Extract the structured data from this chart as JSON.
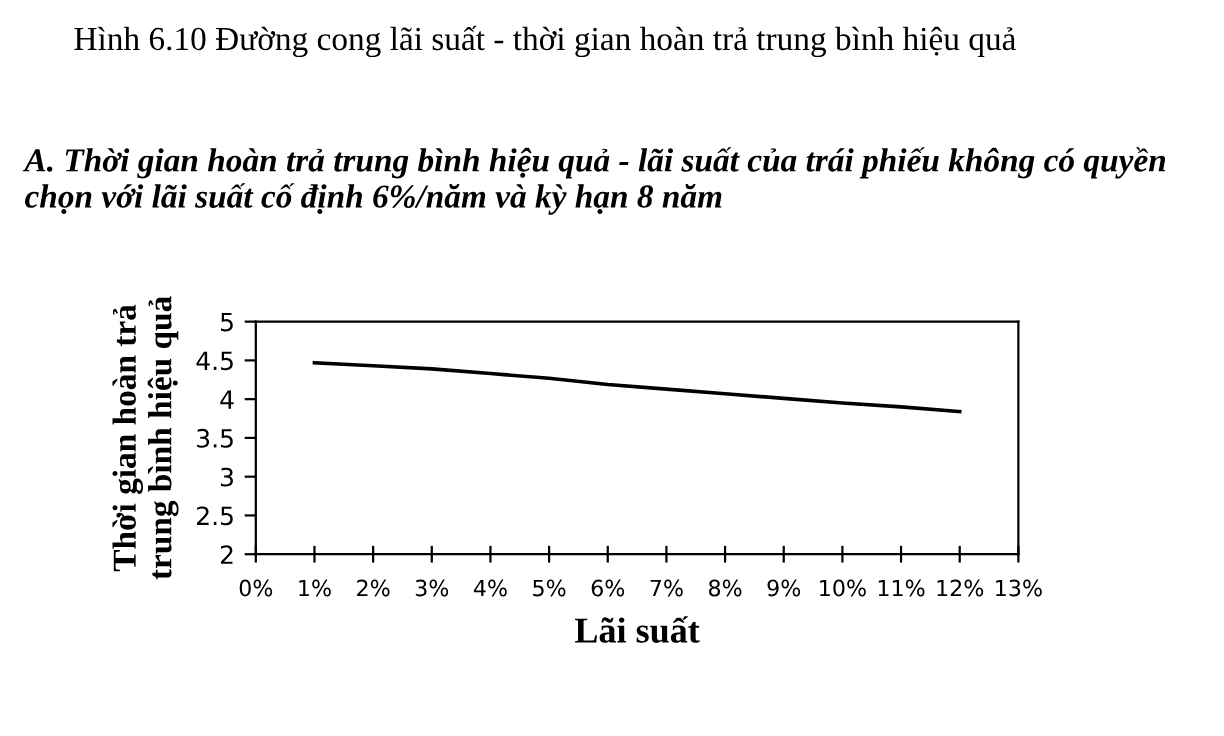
{
  "chart_data": {
    "type": "line",
    "title": "Hình 6.10 Đường cong lãi suất - thời gian hoàn trả trung bình hiệu quả",
    "subtitle": "A. Thời gian hoàn trả trung bình hiệu quả - lãi suất của trái phiếu không có quyền chọn với lãi suất cố định 6%/năm và kỳ hạn 8 năm",
    "xlabel": "Lãi suất",
    "ylabel": "Thời gian hoàn trả\ntrung bình hiệu quả",
    "x": [
      1,
      2,
      3,
      4,
      5,
      6,
      7,
      8,
      9,
      10,
      11,
      12
    ],
    "series": [
      {
        "color": "#000000",
        "values": [
          4.47,
          4.43,
          4.39,
          4.33,
          4.27,
          4.19,
          4.13,
          4.07,
          4.01,
          3.95,
          3.9,
          3.84
        ]
      }
    ],
    "xlim": [
      0,
      13
    ],
    "xticks": [
      {
        "value": 0,
        "label": "0%"
      },
      {
        "value": 1,
        "label": "1%"
      },
      {
        "value": 2,
        "label": "2%"
      },
      {
        "value": 3,
        "label": "3%"
      },
      {
        "value": 4,
        "label": "4%"
      },
      {
        "value": 5,
        "label": "5%"
      },
      {
        "value": 6,
        "label": "6%"
      },
      {
        "value": 7,
        "label": "7%"
      },
      {
        "value": 8,
        "label": "8%"
      },
      {
        "value": 9,
        "label": "9%"
      },
      {
        "value": 10,
        "label": "10%"
      },
      {
        "value": 11,
        "label": "11%"
      },
      {
        "value": 12,
        "label": "12%"
      },
      {
        "value": 13,
        "label": "13%"
      }
    ],
    "ylim": [
      2,
      5
    ],
    "yticks": [
      2,
      2.5,
      3,
      3.5,
      4,
      4.5,
      5
    ],
    "grid": false,
    "legend": false,
    "marker": "none",
    "line_style": "solid"
  }
}
